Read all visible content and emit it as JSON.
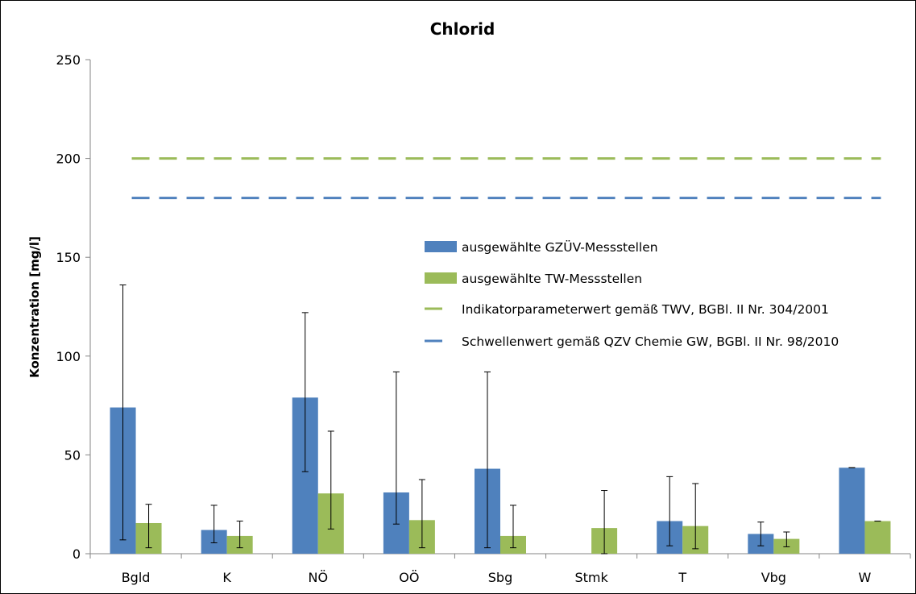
{
  "chart_data": {
    "type": "bar",
    "title": "Chlorid",
    "xlabel": "",
    "ylabel": "Konzentration [mg/l]",
    "ylim": [
      0,
      250
    ],
    "yticks": [
      "0",
      "50",
      "100",
      "150",
      "200",
      "250"
    ],
    "ytick_values": [
      0,
      50,
      100,
      150,
      200,
      250
    ],
    "grid": false,
    "legend_position": "right, center",
    "categories": [
      "Bgld",
      "K",
      "NÖ",
      "OÖ",
      "Sbg",
      "Stmk",
      "T",
      "Vbg",
      "W"
    ],
    "series": [
      {
        "name": "ausgewählte GZÜV-Messstellen",
        "color": "#4f81bd",
        "values": [
          74,
          12,
          79,
          31,
          43,
          null,
          16.5,
          10,
          43.5
        ],
        "error_low": [
          7,
          5.5,
          41.5,
          15,
          3,
          null,
          4,
          4,
          43.5
        ],
        "error_high": [
          136,
          24.5,
          122,
          92,
          92,
          null,
          39,
          16,
          43.5
        ]
      },
      {
        "name": "ausgewählte TW-Messstellen",
        "color": "#9bbb59",
        "values": [
          15.5,
          9,
          30.5,
          17,
          9,
          13,
          14,
          7.5,
          16.5
        ],
        "error_low": [
          3,
          3,
          12.5,
          3,
          3,
          0,
          2.5,
          3.5,
          16.5
        ],
        "error_high": [
          25,
          16.5,
          62,
          37.5,
          24.5,
          32,
          35.5,
          11,
          16.5
        ]
      }
    ],
    "reference_lines": [
      {
        "name": "Indikatorparameterwert gemäß TWV, BGBl. II Nr. 304/2001",
        "value": 200,
        "color": "#9bbb59",
        "style": "dashed"
      },
      {
        "name": "Schwellenwert gemäß QZV Chemie GW, BGBl. II Nr. 98/2010",
        "value": 180,
        "color": "#4f81bd",
        "style": "dashed"
      }
    ]
  }
}
